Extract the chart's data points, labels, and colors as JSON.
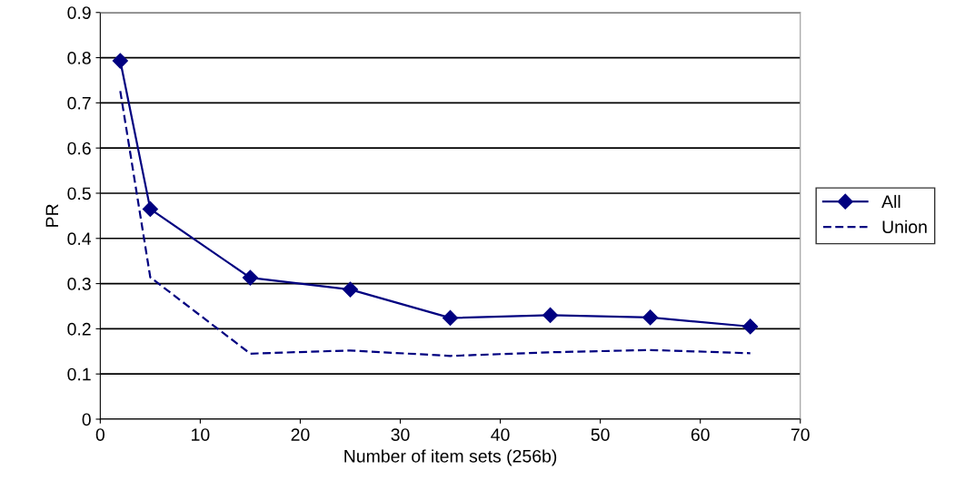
{
  "chart_data": {
    "type": "line",
    "xlabel": "Number of item sets (256b)",
    "ylabel": "PR",
    "xlim": [
      0,
      70
    ],
    "xticks": [
      0,
      10,
      20,
      30,
      40,
      50,
      60,
      70
    ],
    "ylim": [
      0,
      0.9
    ],
    "yticks": [
      0,
      0.1,
      0.2,
      0.3,
      0.4,
      0.5,
      0.6,
      0.7,
      0.8,
      0.9
    ],
    "grid": "y",
    "legend": "right",
    "series": [
      {
        "name": "All",
        "color": "#000080",
        "marker": "diamond",
        "line_style": "solid",
        "x": [
          2,
          5,
          15,
          25,
          35,
          45,
          55,
          65
        ],
        "values": [
          0.793,
          0.465,
          0.313,
          0.287,
          0.224,
          0.23,
          0.225,
          0.205
        ]
      },
      {
        "name": "Union",
        "color": "#000080",
        "marker": "none",
        "line_style": "dashed",
        "x": [
          2,
          5,
          15,
          25,
          35,
          45,
          55,
          65
        ],
        "values": [
          0.726,
          0.314,
          0.145,
          0.152,
          0.14,
          0.148,
          0.153,
          0.146
        ]
      }
    ]
  }
}
